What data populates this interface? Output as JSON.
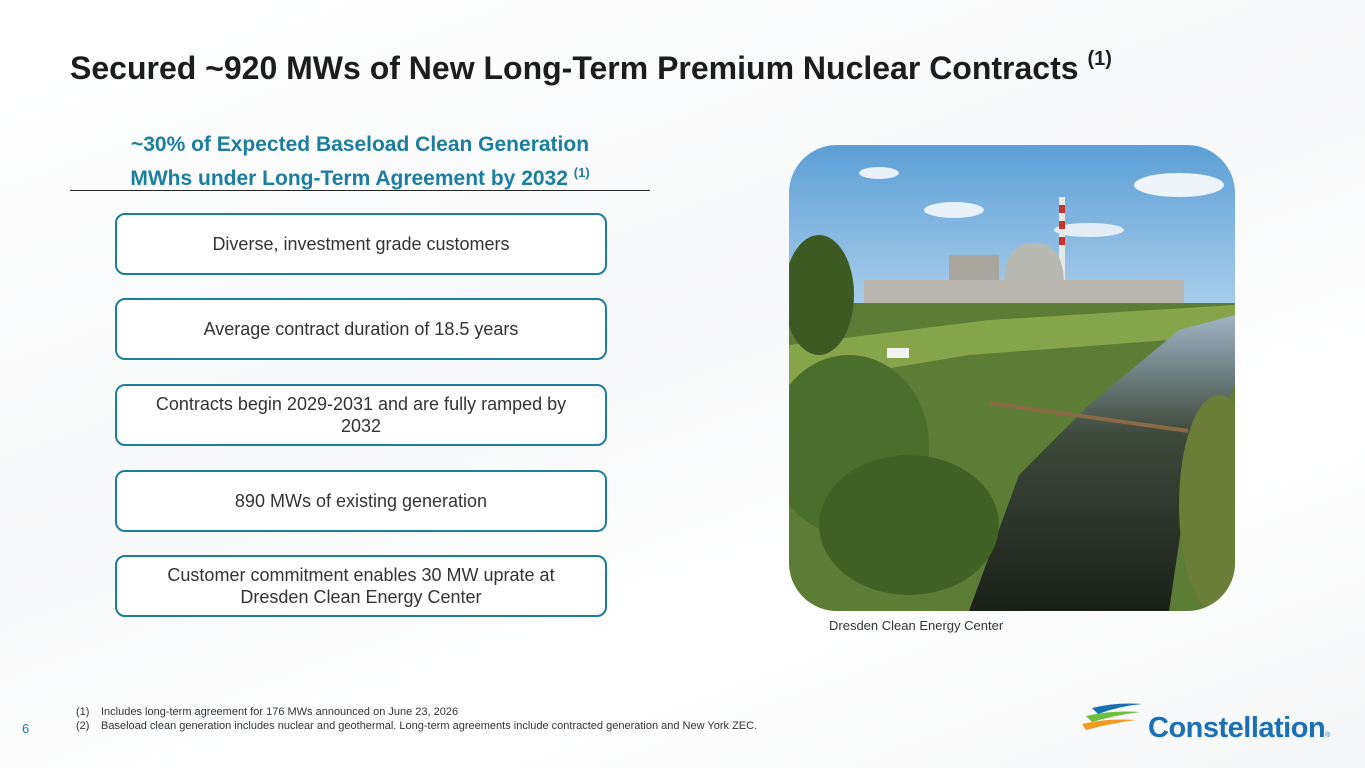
{
  "header": {
    "title": "Secured ~920 MWs of New Long-Term Premium Nuclear Contracts",
    "title_note": "(1)"
  },
  "panel": {
    "subtitle_lines": [
      "~30% of Expected Baseload Clean Generation",
      "MWhs under Long-Term Agreement by 2032"
    ],
    "subtitle_note": "(1)",
    "boxes": [
      "Diverse, investment grade customers",
      "Average contract duration of 18.5 years",
      "Contracts begin 2029-2031 and are fully ramped by 2032",
      "890 MWs of existing generation",
      "Customer commitment enables 30 MW uprate at Dresden Clean Energy Center"
    ]
  },
  "photo": {
    "caption": "Dresden Clean Energy Center"
  },
  "footnotes": [
    {
      "marker": "(1)",
      "text": "Includes long-term agreement for 176 MWs announced on June 23, 2026"
    },
    {
      "marker": "(2)",
      "text": "Baseload clean generation includes nuclear and geothermal. Long-term agreements include contracted generation and New York ZEC."
    }
  ],
  "footer": {
    "page": "6",
    "logo": "Constellation",
    "logo_mark": "®"
  }
}
